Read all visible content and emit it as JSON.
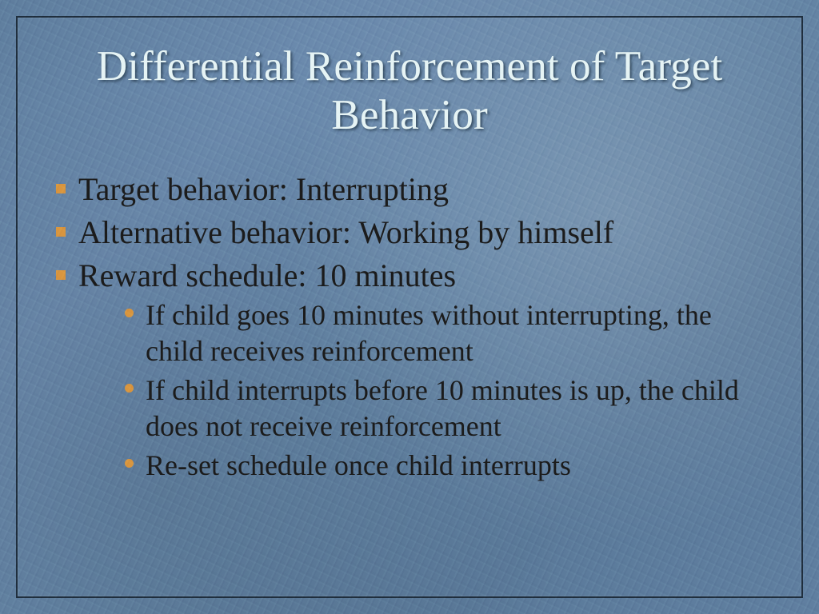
{
  "slide": {
    "title": "Differential Reinforcement of Target Behavior",
    "title_color": "#e6f4f5",
    "title_shadow": "#334a5f",
    "title_fontsize_pt": 40,
    "body_color": "#1b1b1b",
    "body_fontsize_top_pt": 30,
    "body_fontsize_sub_pt": 27,
    "bullet_square_color": "#d8953f",
    "bullet_dot_color": "#d8953f",
    "background_base": "#6080a0",
    "frame_border_color": "#1f2e3d",
    "bullets": [
      {
        "text": "Target behavior: Interrupting"
      },
      {
        "text": "Alternative behavior:  Working by himself"
      },
      {
        "text": "Reward schedule: 10 minutes",
        "sub": [
          "If child goes 10 minutes without interrupting, the child receives reinforcement",
          "If child interrupts before 10 minutes is up, the child does not receive reinforcement",
          "Re-set schedule once child interrupts"
        ]
      }
    ]
  }
}
